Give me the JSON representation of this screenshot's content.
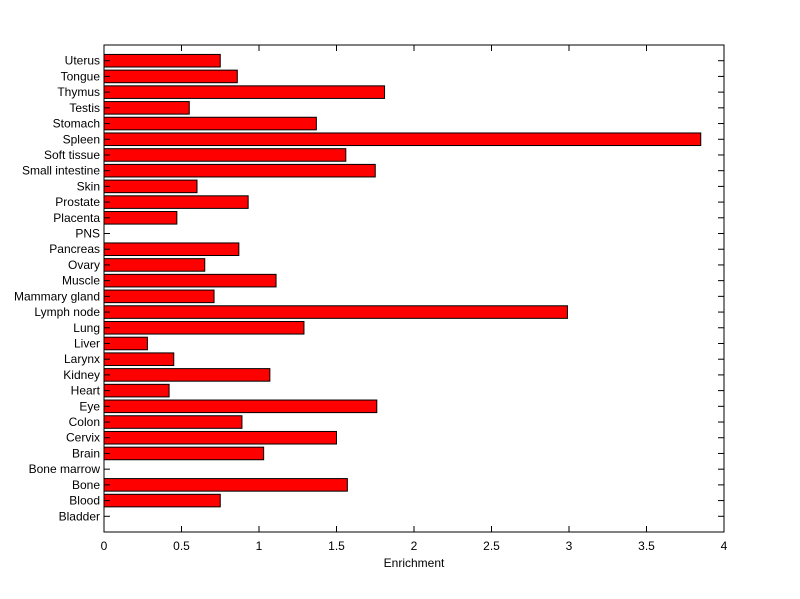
{
  "chart_data": {
    "type": "bar",
    "orientation": "horizontal",
    "title": "",
    "xlabel": "Enrichment",
    "ylabel": "",
    "xlim": [
      0,
      4
    ],
    "xticks": [
      0,
      0.5,
      1,
      1.5,
      2,
      2.5,
      3,
      3.5,
      4
    ],
    "xtick_labels": [
      "0",
      "0.5",
      "1",
      "1.5",
      "2",
      "2.5",
      "3",
      "3.5",
      "4"
    ],
    "grid": false,
    "legend": "none",
    "bar_color": "#ff0000",
    "bar_edge_color": "#000000",
    "categories": [
      "Bladder",
      "Blood",
      "Bone",
      "Bone marrow",
      "Brain",
      "Cervix",
      "Colon",
      "Eye",
      "Heart",
      "Kidney",
      "Larynx",
      "Liver",
      "Lung",
      "Lymph node",
      "Mammary gland",
      "Muscle",
      "Ovary",
      "Pancreas",
      "PNS",
      "Placenta",
      "Prostate",
      "Skin",
      "Small intestine",
      "Soft tissue",
      "Spleen",
      "Stomach",
      "Testis",
      "Thymus",
      "Tongue",
      "Uterus"
    ],
    "values": [
      0,
      0.75,
      1.57,
      0,
      1.03,
      1.5,
      0.89,
      1.76,
      0.42,
      1.07,
      0.45,
      0.28,
      1.29,
      2.99,
      0.71,
      1.11,
      0.65,
      0.87,
      0,
      0.47,
      0.93,
      0.6,
      1.75,
      1.56,
      3.85,
      1.37,
      0.55,
      1.81,
      0.86,
      0.75
    ]
  }
}
